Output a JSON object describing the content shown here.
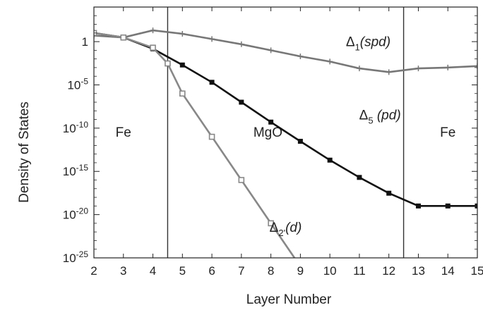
{
  "chart_data": {
    "type": "line",
    "title": "",
    "xlabel": "Layer Number",
    "ylabel": "Density of States",
    "xlim": [
      2,
      15
    ],
    "ylim_log10": [
      -25,
      4
    ],
    "y_scale": "log",
    "x_ticks": [
      "2",
      "3",
      "4",
      "5",
      "6",
      "7",
      "8",
      "9",
      "10",
      "11",
      "12",
      "13",
      "14",
      "15"
    ],
    "y_ticks": [
      {
        "value": 1,
        "base": "1",
        "exp": ""
      },
      {
        "value": 1e-05,
        "base": "10",
        "exp": "-5"
      },
      {
        "value": 1e-10,
        "base": "10",
        "exp": "-10"
      },
      {
        "value": 1e-15,
        "base": "10",
        "exp": "-15"
      },
      {
        "value": 1e-20,
        "base": "10",
        "exp": "-20"
      },
      {
        "value": 1e-25,
        "base": "10",
        "exp": "-25"
      }
    ],
    "boundaries": [
      4.5,
      12.5
    ],
    "regions": [
      {
        "label": "Fe",
        "x": 3.0,
        "y": 1e-11
      },
      {
        "label": "MgO",
        "x": 7.9,
        "y": 1e-11
      },
      {
        "label": "Fe",
        "x": 14.0,
        "y": 1e-11
      }
    ],
    "series": [
      {
        "name_main": "Δ",
        "name_sub": "1",
        "name_rest": "(spd)",
        "color": "#777777",
        "marker": "plus",
        "x": [
          2,
          3,
          4,
          5,
          6,
          7,
          8,
          9,
          10,
          11,
          12,
          13,
          14,
          15
        ],
        "y": [
          5,
          3,
          20,
          8,
          2,
          0.5,
          0.1,
          0.02,
          0.005,
          0.0008,
          0.0003,
          0.0008,
          0.001,
          0.0015
        ],
        "label_at": [
          11.3,
          0.3
        ]
      },
      {
        "name_main": "Δ",
        "name_sub": "5",
        "name_rest": " (pd)",
        "color": "#111111",
        "marker": "square",
        "x": [
          2,
          3,
          4,
          5,
          6,
          7,
          8,
          9,
          10,
          11,
          12,
          13,
          14,
          15
        ],
        "y": [
          10,
          3,
          0.15,
          0.002,
          2e-05,
          1e-07,
          5e-10,
          3e-12,
          2e-14,
          2e-16,
          3e-18,
          1e-19,
          1e-19,
          1e-19
        ],
        "label_at": [
          11.7,
          1e-09
        ]
      },
      {
        "name_main": "Δ",
        "name_sub": "2'",
        "name_rest": "(d)",
        "color": "#888888",
        "marker": "square-open",
        "x": [
          2,
          3,
          4,
          4.5,
          5,
          6,
          7,
          8,
          9
        ],
        "y": [
          10,
          3,
          0.2,
          0.003,
          1e-06,
          1e-11,
          1e-16,
          1e-21,
          1e-26
        ],
        "label_at": [
          8.5,
          1e-22
        ]
      }
    ]
  }
}
